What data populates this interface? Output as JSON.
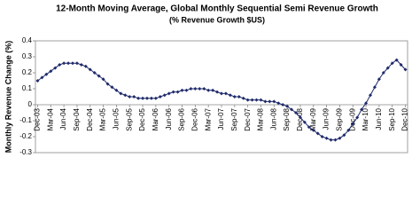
{
  "chart_data": {
    "type": "line",
    "title": "12-Month Moving Average, Global Monthly Sequential Semi Revenue Growth",
    "subtitle": "(% Revenue Growth $US)",
    "y_label": "Monthly Revenue Change (%)",
    "categories": [
      "Dec-03",
      null,
      null,
      "Mar-04",
      null,
      null,
      "Jun-04",
      null,
      null,
      "Sep-04",
      null,
      null,
      "Dec-04",
      null,
      null,
      "Mar-05",
      null,
      null,
      "Jun-05",
      null,
      null,
      "Sep-05",
      null,
      null,
      "Dec-05",
      null,
      null,
      "Mar-06",
      null,
      null,
      "Jun-06",
      null,
      null,
      "Sep-06",
      null,
      null,
      "Dec-06",
      null,
      null,
      "Mar-07",
      null,
      null,
      "Jun-07",
      null,
      null,
      "Sep-07",
      null,
      null,
      "Dec-07",
      null,
      null,
      "Mar-08",
      null,
      null,
      "Jun-08",
      null,
      null,
      "Sep-08",
      null,
      null,
      "Dec-08",
      null,
      null,
      "Mar-09",
      null,
      null,
      "Jun-09",
      null,
      null,
      "Sep-09",
      null,
      null,
      "Dec-09",
      null,
      null,
      "Mar-10",
      null,
      null,
      "Jun-10",
      null,
      null,
      "Sep-10",
      null,
      null,
      "Dec-10"
    ],
    "values": [
      0.15,
      0.17,
      0.19,
      0.21,
      0.23,
      0.25,
      0.26,
      0.26,
      0.26,
      0.26,
      0.25,
      0.24,
      0.22,
      0.2,
      0.18,
      0.16,
      0.13,
      0.11,
      0.09,
      0.07,
      0.06,
      0.05,
      0.05,
      0.04,
      0.04,
      0.04,
      0.04,
      0.04,
      0.05,
      0.06,
      0.07,
      0.08,
      0.08,
      0.09,
      0.09,
      0.1,
      0.1,
      0.1,
      0.1,
      0.09,
      0.09,
      0.08,
      0.07,
      0.07,
      0.06,
      0.05,
      0.05,
      0.04,
      0.03,
      0.03,
      0.03,
      0.03,
      0.02,
      0.02,
      0.02,
      0.01,
      0.0,
      -0.01,
      -0.03,
      -0.05,
      -0.08,
      -0.11,
      -0.14,
      -0.16,
      -0.18,
      -0.2,
      -0.21,
      -0.22,
      -0.22,
      -0.21,
      -0.19,
      -0.16,
      -0.12,
      -0.08,
      -0.03,
      0.01,
      0.06,
      0.11,
      0.16,
      0.2,
      0.23,
      0.26,
      0.28,
      0.25,
      0.22
    ],
    "color": "#1f2a6b",
    "ylim": [
      -0.3,
      0.4
    ],
    "yticks": [
      -0.3,
      -0.2,
      -0.1,
      0,
      0.1,
      0.2,
      0.3,
      0.4
    ]
  }
}
